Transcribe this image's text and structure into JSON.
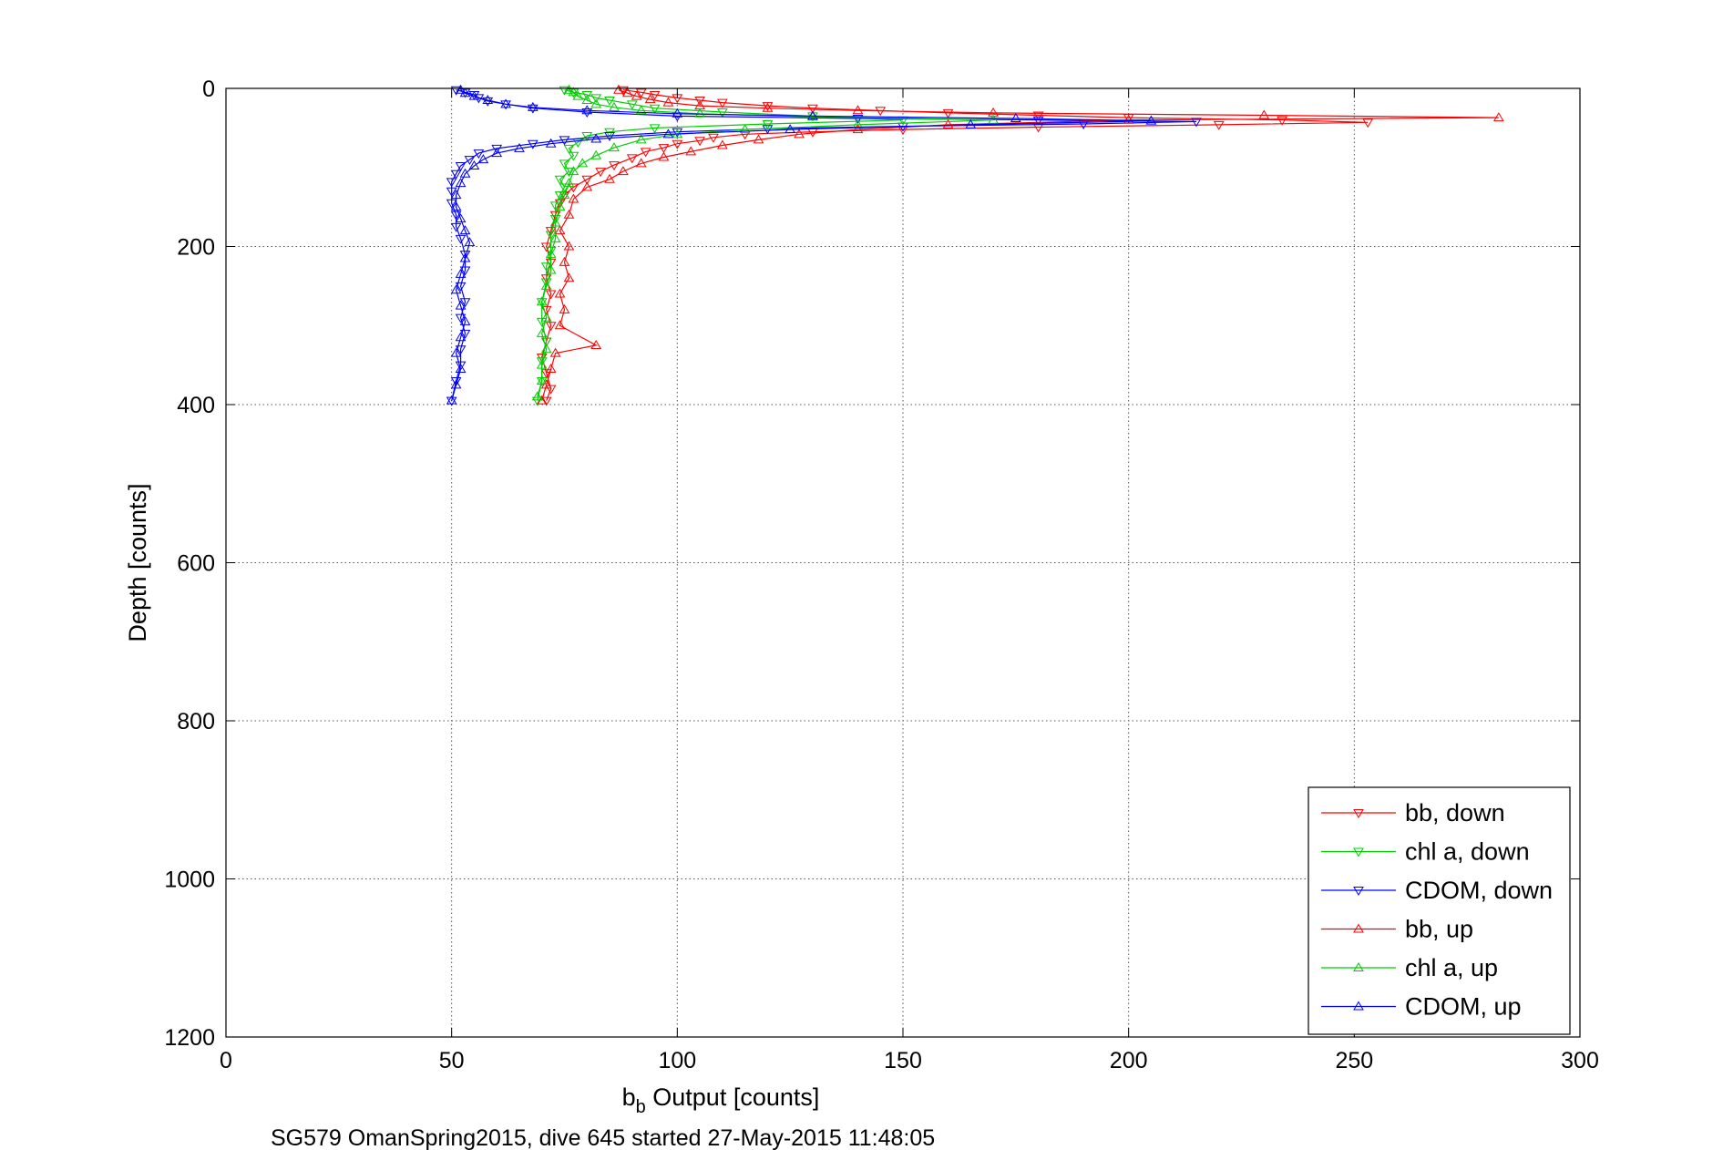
{
  "chart_data": {
    "type": "scatter",
    "title": "",
    "xlabel_main": "b",
    "xlabel_sub": "b",
    "xlabel_rest": " Output [counts]",
    "ylabel": "Depth [counts]",
    "footer": "SG579 OmanSpring2015, dive 645 started 27-May-2015 11:48:05",
    "xlim": [
      0,
      300
    ],
    "ylim": [
      0,
      1200
    ],
    "y_reversed": true,
    "grid": true,
    "legend_position": "bottom-right",
    "xticks": [
      0,
      50,
      100,
      150,
      200,
      250,
      300
    ],
    "yticks": [
      0,
      200,
      400,
      600,
      800,
      1000,
      1200
    ],
    "series": [
      {
        "name": "bb, down",
        "color": "#ff0000",
        "marker": "triangle-down",
        "connected": true,
        "points": [
          [
            88,
            2
          ],
          [
            92,
            5
          ],
          [
            95,
            8
          ],
          [
            100,
            12
          ],
          [
            105,
            15
          ],
          [
            110,
            18
          ],
          [
            120,
            22
          ],
          [
            130,
            25
          ],
          [
            145,
            28
          ],
          [
            160,
            31
          ],
          [
            180,
            34
          ],
          [
            200,
            37
          ],
          [
            234,
            40
          ],
          [
            253,
            43
          ],
          [
            220,
            46
          ],
          [
            180,
            49
          ],
          [
            150,
            52
          ],
          [
            130,
            55
          ],
          [
            115,
            58
          ],
          [
            108,
            62
          ],
          [
            105,
            66
          ],
          [
            100,
            70
          ],
          [
            97,
            75
          ],
          [
            93,
            80
          ],
          [
            90,
            88
          ],
          [
            86,
            97
          ],
          [
            83,
            105
          ],
          [
            80,
            115
          ],
          [
            77,
            125
          ],
          [
            75,
            135
          ],
          [
            74,
            145
          ],
          [
            73,
            160
          ],
          [
            72,
            180
          ],
          [
            71,
            200
          ],
          [
            72,
            220
          ],
          [
            71,
            240
          ],
          [
            72,
            260
          ],
          [
            71,
            280
          ],
          [
            72,
            300
          ],
          [
            71,
            320
          ],
          [
            70,
            340
          ],
          [
            71,
            360
          ],
          [
            72,
            380
          ],
          [
            71,
            395
          ]
        ]
      },
      {
        "name": "chl a, down",
        "color": "#00cc00",
        "marker": "triangle-down",
        "connected": true,
        "points": [
          [
            75,
            2
          ],
          [
            77,
            5
          ],
          [
            80,
            8
          ],
          [
            82,
            12
          ],
          [
            85,
            15
          ],
          [
            90,
            20
          ],
          [
            95,
            25
          ],
          [
            110,
            30
          ],
          [
            130,
            35
          ],
          [
            150,
            40
          ],
          [
            120,
            45
          ],
          [
            95,
            50
          ],
          [
            85,
            55
          ],
          [
            80,
            60
          ],
          [
            78,
            68
          ],
          [
            76,
            76
          ],
          [
            77,
            85
          ],
          [
            75,
            95
          ],
          [
            76,
            105
          ],
          [
            74,
            115
          ],
          [
            75,
            125
          ],
          [
            74,
            135
          ],
          [
            73,
            148
          ],
          [
            73,
            165
          ],
          [
            72,
            185
          ],
          [
            72,
            205
          ],
          [
            71,
            225
          ],
          [
            71,
            245
          ],
          [
            70,
            270
          ],
          [
            70,
            295
          ],
          [
            71,
            320
          ],
          [
            70,
            345
          ],
          [
            70,
            370
          ],
          [
            69,
            395
          ]
        ]
      },
      {
        "name": "CDOM, down",
        "color": "#0000ff",
        "marker": "triangle-down",
        "connected": true,
        "points": [
          [
            51,
            2
          ],
          [
            53,
            5
          ],
          [
            55,
            8
          ],
          [
            56,
            12
          ],
          [
            58,
            16
          ],
          [
            62,
            20
          ],
          [
            68,
            25
          ],
          [
            80,
            30
          ],
          [
            100,
            35
          ],
          [
            140,
            38
          ],
          [
            180,
            40
          ],
          [
            215,
            42
          ],
          [
            190,
            45
          ],
          [
            150,
            48
          ],
          [
            120,
            51
          ],
          [
            100,
            55
          ],
          [
            85,
            60
          ],
          [
            75,
            65
          ],
          [
            68,
            70
          ],
          [
            60,
            76
          ],
          [
            56,
            82
          ],
          [
            54,
            90
          ],
          [
            52,
            98
          ],
          [
            51,
            108
          ],
          [
            50,
            118
          ],
          [
            50,
            130
          ],
          [
            50,
            145
          ],
          [
            51,
            160
          ],
          [
            51,
            175
          ],
          [
            52,
            190
          ],
          [
            53,
            210
          ],
          [
            53,
            230
          ],
          [
            52,
            250
          ],
          [
            53,
            270
          ],
          [
            52,
            290
          ],
          [
            53,
            310
          ],
          [
            52,
            330
          ],
          [
            52,
            350
          ],
          [
            51,
            370
          ],
          [
            50,
            395
          ]
        ]
      },
      {
        "name": "bb, up",
        "color": "#ff0000",
        "marker": "triangle-up",
        "connected": true,
        "points": [
          [
            70,
            395
          ],
          [
            71,
            375
          ],
          [
            72,
            355
          ],
          [
            73,
            335
          ],
          [
            82,
            325
          ],
          [
            74,
            300
          ],
          [
            75,
            280
          ],
          [
            74,
            260
          ],
          [
            76,
            240
          ],
          [
            75,
            220
          ],
          [
            76,
            200
          ],
          [
            74,
            180
          ],
          [
            76,
            160
          ],
          [
            77,
            140
          ],
          [
            80,
            125
          ],
          [
            85,
            115
          ],
          [
            88,
            105
          ],
          [
            92,
            95
          ],
          [
            97,
            87
          ],
          [
            103,
            80
          ],
          [
            110,
            72
          ],
          [
            118,
            65
          ],
          [
            127,
            58
          ],
          [
            140,
            52
          ],
          [
            160,
            46
          ],
          [
            200,
            40
          ],
          [
            282,
            37
          ],
          [
            230,
            34
          ],
          [
            170,
            31
          ],
          [
            140,
            28
          ],
          [
            120,
            25
          ],
          [
            105,
            22
          ],
          [
            98,
            18
          ],
          [
            94,
            14
          ],
          [
            91,
            10
          ],
          [
            89,
            6
          ],
          [
            87,
            2
          ]
        ]
      },
      {
        "name": "chl a, up",
        "color": "#00cc00",
        "marker": "triangle-up",
        "connected": true,
        "points": [
          [
            69,
            390
          ],
          [
            70,
            370
          ],
          [
            70,
            350
          ],
          [
            71,
            330
          ],
          [
            70,
            310
          ],
          [
            71,
            290
          ],
          [
            70,
            270
          ],
          [
            71,
            250
          ],
          [
            72,
            230
          ],
          [
            72,
            210
          ],
          [
            73,
            190
          ],
          [
            73,
            170
          ],
          [
            74,
            150
          ],
          [
            75,
            135
          ],
          [
            76,
            120
          ],
          [
            77,
            105
          ],
          [
            79,
            95
          ],
          [
            82,
            85
          ],
          [
            86,
            75
          ],
          [
            92,
            65
          ],
          [
            100,
            58
          ],
          [
            115,
            52
          ],
          [
            140,
            46
          ],
          [
            170,
            40
          ],
          [
            130,
            36
          ],
          [
            105,
            32
          ],
          [
            92,
            28
          ],
          [
            86,
            24
          ],
          [
            82,
            20
          ],
          [
            80,
            15
          ],
          [
            78,
            10
          ],
          [
            77,
            5
          ],
          [
            76,
            2
          ]
        ]
      },
      {
        "name": "CDOM, up",
        "color": "#0000ff",
        "marker": "triangle-up",
        "connected": true,
        "points": [
          [
            50,
            395
          ],
          [
            51,
            375
          ],
          [
            52,
            355
          ],
          [
            51,
            335
          ],
          [
            52,
            315
          ],
          [
            53,
            295
          ],
          [
            52,
            275
          ],
          [
            51,
            255
          ],
          [
            52,
            235
          ],
          [
            53,
            215
          ],
          [
            54,
            195
          ],
          [
            53,
            180
          ],
          [
            52,
            165
          ],
          [
            51,
            150
          ],
          [
            51,
            135
          ],
          [
            52,
            120
          ],
          [
            53,
            108
          ],
          [
            55,
            98
          ],
          [
            57,
            90
          ],
          [
            60,
            82
          ],
          [
            65,
            76
          ],
          [
            72,
            70
          ],
          [
            82,
            64
          ],
          [
            98,
            58
          ],
          [
            125,
            52
          ],
          [
            165,
            46
          ],
          [
            205,
            41
          ],
          [
            175,
            38
          ],
          [
            130,
            35
          ],
          [
            100,
            32
          ],
          [
            80,
            28
          ],
          [
            68,
            24
          ],
          [
            62,
            20
          ],
          [
            58,
            15
          ],
          [
            55,
            10
          ],
          [
            53,
            6
          ],
          [
            52,
            2
          ]
        ]
      }
    ]
  }
}
